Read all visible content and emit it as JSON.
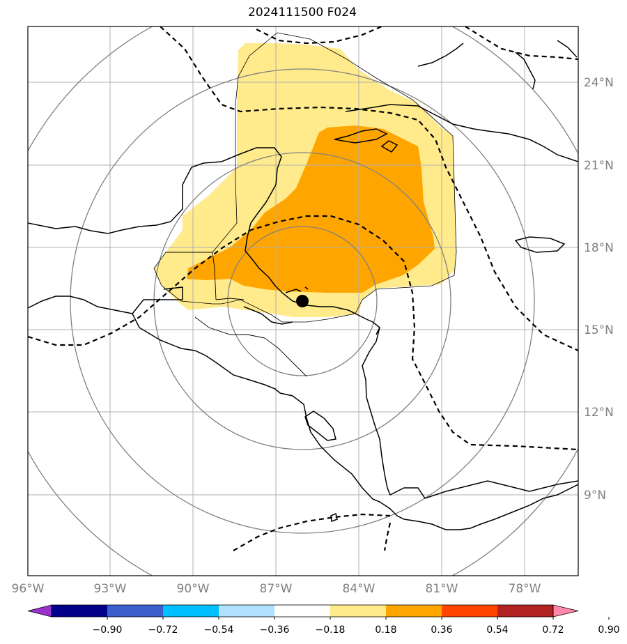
{
  "title": "2024111500 F024",
  "map": {
    "lat_labels": [
      "24°N",
      "21°N",
      "18°N",
      "15°N",
      "12°N",
      "9°N"
    ],
    "lon_labels": [
      "96°W",
      "93°W",
      "90°W",
      "87°W",
      "84°W",
      "81°W",
      "78°W"
    ],
    "lon_range": [
      -96,
      -76
    ],
    "lat_range": [
      6,
      26
    ],
    "storm_center": {
      "lon": -86.0,
      "lat": 16.1
    },
    "colors": {
      "light_fill": "#ffea8c",
      "dark_fill": "#ffa500",
      "grid": "#b0b0b0",
      "range_rings": "#808080",
      "coast": "#000000"
    }
  },
  "colorbar": {
    "ticks": [
      "−0.90",
      "−0.72",
      "−0.54",
      "−0.36",
      "−0.18",
      "0.18",
      "0.36",
      "0.54",
      "0.72",
      "0.90"
    ],
    "colors": [
      "#9932cc",
      "#00008b",
      "#3a5fcd",
      "#00bfff",
      "#b0e2ff",
      "#ffffff",
      "#ffea8c",
      "#ffa500",
      "#ff4500",
      "#b22222",
      "#ff88aa"
    ]
  }
}
